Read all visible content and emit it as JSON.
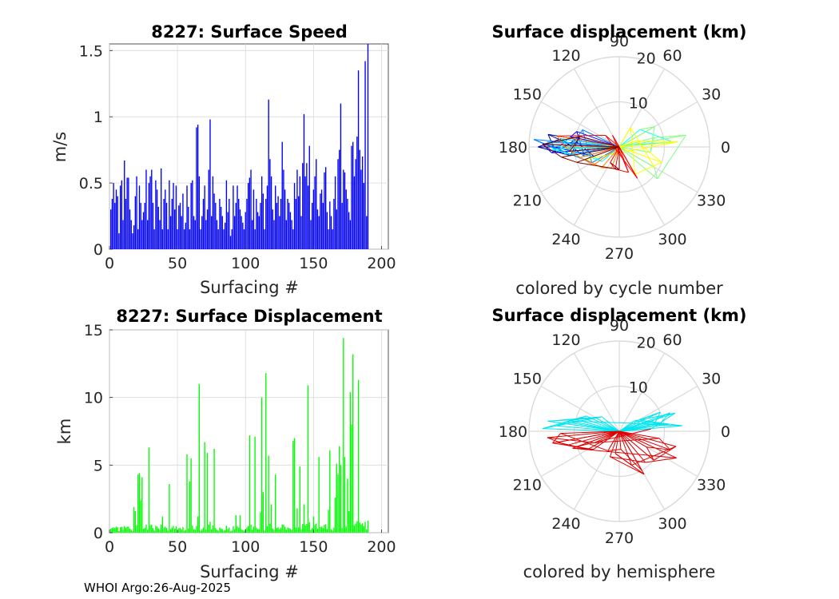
{
  "figure": {
    "footer": "WHOI Argo:26-Aug-2025"
  },
  "colors": {
    "speed_bars": "#0000ff",
    "displacement_bars": "#00ff00",
    "grid": "#d9d9d9",
    "axis": "#262626",
    "cycle_colormap": [
      "#00008f",
      "#0000ff",
      "#0080ff",
      "#00ffff",
      "#80ff80",
      "#ffff00",
      "#ff8000",
      "#ff0000",
      "#800000"
    ],
    "north": "#00e5ee",
    "south": "#dd0000"
  },
  "chart_data": [
    {
      "id": "speed",
      "type": "bar",
      "title": "8227: Surface Speed",
      "xlabel": "Surfacing #",
      "ylabel": "m/s",
      "xlim": [
        0,
        205
      ],
      "ylim": [
        0,
        1.55
      ],
      "xticks": [
        0,
        50,
        100,
        150,
        200
      ],
      "xtick_labels": [
        "0",
        "50",
        "100",
        "150",
        "200"
      ],
      "yticks": [
        0,
        0.5,
        1,
        1.5
      ],
      "ytick_labels": [
        "0",
        "0.5",
        "1",
        "1.5"
      ],
      "values": [
        0.3,
        0.38,
        0.5,
        0.35,
        0.45,
        0.4,
        0.12,
        0.48,
        0.52,
        0.22,
        0.67,
        0.38,
        0.54,
        0.54,
        0.3,
        0.22,
        0.12,
        0.18,
        0.4,
        0.55,
        0.15,
        0.48,
        0.35,
        0.22,
        0.28,
        0.35,
        0.6,
        0.22,
        0.5,
        0.55,
        0.6,
        0.35,
        0.15,
        0.52,
        0.45,
        0.32,
        0.22,
        0.61,
        0.15,
        0.38,
        0.45,
        0.35,
        0.15,
        0.52,
        0.25,
        0.38,
        0.5,
        0.3,
        0.48,
        0.15,
        0.33,
        0.35,
        0.25,
        0.42,
        0.15,
        0.2,
        0.48,
        0.32,
        0.15,
        0.5,
        0.52,
        0.25,
        0.22,
        0.92,
        0.94,
        0.55,
        0.15,
        0.25,
        0.38,
        0.48,
        0.22,
        0.3,
        0.6,
        0.98,
        0.25,
        0.55,
        0.42,
        0.35,
        0.22,
        0.15,
        0.38,
        0.32,
        0.25,
        0.15,
        0.2,
        0.52,
        0.28,
        0.38,
        0.1,
        0.15,
        0.48,
        0.25,
        0.35,
        0.48,
        0.38,
        0.3,
        0.25,
        0.2,
        0.15,
        0.28,
        0.38,
        0.5,
        0.54,
        0.6,
        0.22,
        0.45,
        0.15,
        0.38,
        0.28,
        0.25,
        0.35,
        0.55,
        0.42,
        0.15,
        0.38,
        0.48,
        1.13,
        0.68,
        0.55,
        0.3,
        0.22,
        0.48,
        0.35,
        0.4,
        0.25,
        0.38,
        0.81,
        0.6,
        0.45,
        0.22,
        0.38,
        0.35,
        0.28,
        0.22,
        0.15,
        0.5,
        0.38,
        0.6,
        0.4,
        0.55,
        0.25,
        0.65,
        1.02,
        0.55,
        0.65,
        0.48,
        0.78,
        0.22,
        0.35,
        0.45,
        0.55,
        0.68,
        0.3,
        0.25,
        0.42,
        0.45,
        0.35,
        0.58,
        0.62,
        0.28,
        0.15,
        0.36,
        0.25,
        0.15,
        0.38,
        0.55,
        0.3,
        0.68,
        0.75,
        1.1,
        0.35,
        0.6,
        0.58,
        0.45,
        0.38,
        0.28,
        0.22,
        0.78,
        0.81,
        0.55,
        0.68,
        0.85,
        1.35,
        0.75,
        0.6,
        0.7,
        0.5,
        1.42,
        0.25,
        1.55
      ],
      "bar_color": "#0000ff"
    },
    {
      "id": "displacement",
      "type": "bar",
      "title": "8227: Surface Displacement",
      "xlabel": "Surfacing #",
      "ylabel": "km",
      "xlim": [
        0,
        205
      ],
      "ylim": [
        0,
        15
      ],
      "xticks": [
        0,
        50,
        100,
        150,
        200
      ],
      "xtick_labels": [
        "0",
        "50",
        "100",
        "150",
        "200"
      ],
      "yticks": [
        0,
        5,
        10,
        15
      ],
      "ytick_labels": [
        "0",
        "5",
        "10",
        "15"
      ],
      "values": [
        0.3,
        0.35,
        0.4,
        0.35,
        0.45,
        0.4,
        0.12,
        0.4,
        0.45,
        0.22,
        0.5,
        0.38,
        0.45,
        0.45,
        0.3,
        0.22,
        0.12,
        1.9,
        1.6,
        0.55,
        4.3,
        4.4,
        2.4,
        4.1,
        0.3,
        0.35,
        0.6,
        0.22,
        6.3,
        0.55,
        0.6,
        0.35,
        0.15,
        0.52,
        0.45,
        0.32,
        0.22,
        0.6,
        1.2,
        0.38,
        0.45,
        0.35,
        0.15,
        3.6,
        0.25,
        0.38,
        0.5,
        0.3,
        0.48,
        0.15,
        0.33,
        0.35,
        0.25,
        0.42,
        0.15,
        0.2,
        5.8,
        0.32,
        3.8,
        5.5,
        0.52,
        0.25,
        0.22,
        0.5,
        1.2,
        11.0,
        0.15,
        0.25,
        0.38,
        6.7,
        0.22,
        5.9,
        0.6,
        0.8,
        0.25,
        0.55,
        6.2,
        0.35,
        0.22,
        0.15,
        0.38,
        0.32,
        0.25,
        0.15,
        0.2,
        0.52,
        0.28,
        0.38,
        0.1,
        0.15,
        0.48,
        0.25,
        1.3,
        0.48,
        0.38,
        1.3,
        0.25,
        0.2,
        0.15,
        0.28,
        0.38,
        0.5,
        7.2,
        0.6,
        0.22,
        0.45,
        7.1,
        0.38,
        0.28,
        0.25,
        1.5,
        10.0,
        3.0,
        0.15,
        11.8,
        0.48,
        5.7,
        0.68,
        2.1,
        0.3,
        0.22,
        4.3,
        0.35,
        0.4,
        0.25,
        0.38,
        0.6,
        0.6,
        0.45,
        0.22,
        0.38,
        0.35,
        0.28,
        0.22,
        6.8,
        7.0,
        0.38,
        1.8,
        0.4,
        4.9,
        0.25,
        0.65,
        2.1,
        0.55,
        0.65,
        10.9,
        0.78,
        0.22,
        0.35,
        1.2,
        0.55,
        0.68,
        0.3,
        5.6,
        0.42,
        0.45,
        0.35,
        0.58,
        0.62,
        0.28,
        1.7,
        6.1,
        0.25,
        0.15,
        0.38,
        2.6,
        5.1,
        4.3,
        6.4,
        5.0,
        0.35,
        14.4,
        5.6,
        0.45,
        4.0,
        1.6,
        10.4,
        8.0,
        13.2,
        0.55,
        0.68,
        0.85,
        11.3,
        0.75,
        0.6,
        0.7,
        0.5,
        0.8,
        0.25,
        0.9
      ],
      "bar_color": "#00ff00"
    },
    {
      "id": "polar-cycle",
      "type": "polar",
      "title": "Surface displacement (km)",
      "caption": "colored by cycle number",
      "color_mode": "cycle",
      "rmax": 20,
      "rings": [
        10,
        20
      ],
      "ring_labels": [
        "10",
        "20"
      ],
      "angles_deg": [
        0,
        30,
        60,
        90,
        120,
        150,
        180,
        210,
        240,
        270,
        300,
        330
      ],
      "angle_labels": [
        "0",
        "30",
        "60",
        "90",
        "120",
        "150",
        "180",
        "210",
        "240",
        "270",
        "300",
        "330"
      ],
      "path_deg": [
        175,
        170,
        185,
        165,
        190,
        180,
        172,
        195,
        160,
        185,
        178,
        200,
        168,
        182,
        175,
        210,
        155,
        188,
        176,
        220,
        172,
        190,
        182,
        5,
        40,
        30,
        350,
        15,
        10,
        320,
        330,
        60,
        300,
        340,
        20,
        5,
        200,
        230,
        250,
        215,
        195,
        180,
        170,
        140,
        300,
        120,
        290,
        260,
        240,
        270,
        200,
        190,
        178,
        165,
        185
      ],
      "path_r": [
        12,
        16,
        14,
        9,
        11,
        18,
        13,
        8,
        10,
        15,
        17,
        6,
        11,
        14,
        19,
        7,
        9,
        12,
        16,
        5,
        13,
        10,
        15,
        12,
        6,
        9,
        7,
        8,
        15,
        11,
        9,
        5,
        7,
        10,
        4,
        13,
        8,
        6,
        5,
        7,
        9,
        12,
        14,
        4,
        8,
        3,
        6,
        5,
        4,
        5,
        10,
        13,
        17,
        9,
        11
      ]
    },
    {
      "id": "polar-hemisphere",
      "type": "polar",
      "title": "Surface displacement (km)",
      "caption": "colored by hemisphere",
      "color_mode": "hemisphere",
      "rmax": 20,
      "rings": [
        10,
        20
      ],
      "ring_labels": [
        "10",
        "20"
      ],
      "angles_deg": [
        0,
        30,
        60,
        90,
        120,
        150,
        180,
        210,
        240,
        270,
        300,
        330
      ],
      "angle_labels": [
        "0",
        "30",
        "60",
        "90",
        "120",
        "150",
        "180",
        "210",
        "240",
        "270",
        "300",
        "330"
      ],
      "path_deg": [
        170,
        160,
        175,
        150,
        165,
        172,
        140,
        178,
        155,
        168,
        10,
        20,
        15,
        5,
        30,
        25,
        12,
        8,
        35,
        18,
        4,
        200,
        190,
        210,
        195,
        185,
        205,
        350,
        340,
        330,
        320,
        345,
        290,
        260,
        300,
        250,
        310,
        335,
        200,
        215,
        190,
        182,
        240,
        275,
        300
      ],
      "path_r": [
        12,
        9,
        14,
        6,
        10,
        16,
        5,
        17,
        8,
        11,
        9,
        12,
        6,
        14,
        5,
        10,
        8,
        11,
        4,
        13,
        7,
        10,
        14,
        8,
        12,
        16,
        6,
        9,
        12,
        7,
        10,
        13,
        8,
        5,
        11,
        6,
        9,
        14,
        11,
        7,
        15,
        13,
        5,
        4,
        10
      ]
    }
  ]
}
